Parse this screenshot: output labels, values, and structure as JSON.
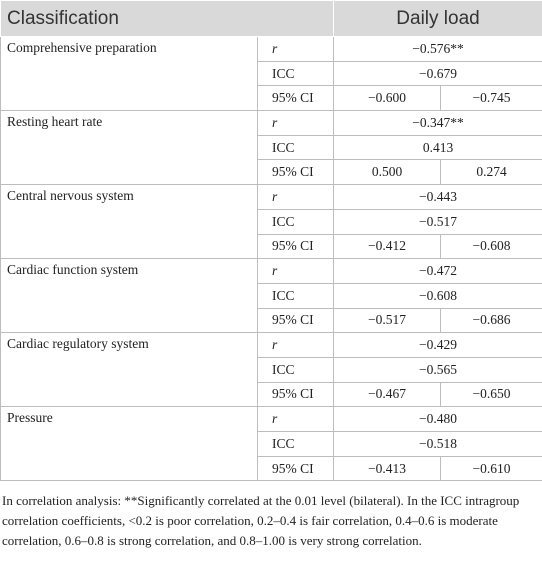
{
  "header": [
    "Classification",
    "Daily load"
  ],
  "stat_labels": [
    "r",
    "ICC",
    "95% CI"
  ],
  "groups": [
    {
      "name": "Comprehensive preparation",
      "r": "−0.576**",
      "icc": "−0.679",
      "ci": [
        "−0.600",
        "−0.745"
      ]
    },
    {
      "name": "Resting heart rate",
      "r": "−0.347**",
      "icc": "0.413",
      "ci": [
        "0.500",
        "0.274"
      ]
    },
    {
      "name": "Central nervous system",
      "r": "−0.443",
      "icc": "−0.517",
      "ci": [
        "−0.412",
        "−0.608"
      ]
    },
    {
      "name": "Cardiac function system",
      "r": "−0.472",
      "icc": "−0.608",
      "ci": [
        "−0.517",
        "−0.686"
      ]
    },
    {
      "name": "Cardiac regulatory system",
      "r": "−0.429",
      "icc": "−0.565",
      "ci": [
        "−0.467",
        "−0.650"
      ]
    },
    {
      "name": "Pressure",
      "r": "−0.480",
      "icc": "−0.518",
      "ci": [
        "−0.413",
        "−0.610"
      ]
    }
  ],
  "footnote": "In correlation analysis: **Significantly correlated at the 0.01 level (bilateral). In the ICC intragroup correlation coefficients, <0.2 is poor correlation, 0.2–0.4 is fair correlation, 0.4–0.6 is moderate correlation, 0.6–0.8 is strong correlation, and 0.8–1.00 is very strong correlation."
}
